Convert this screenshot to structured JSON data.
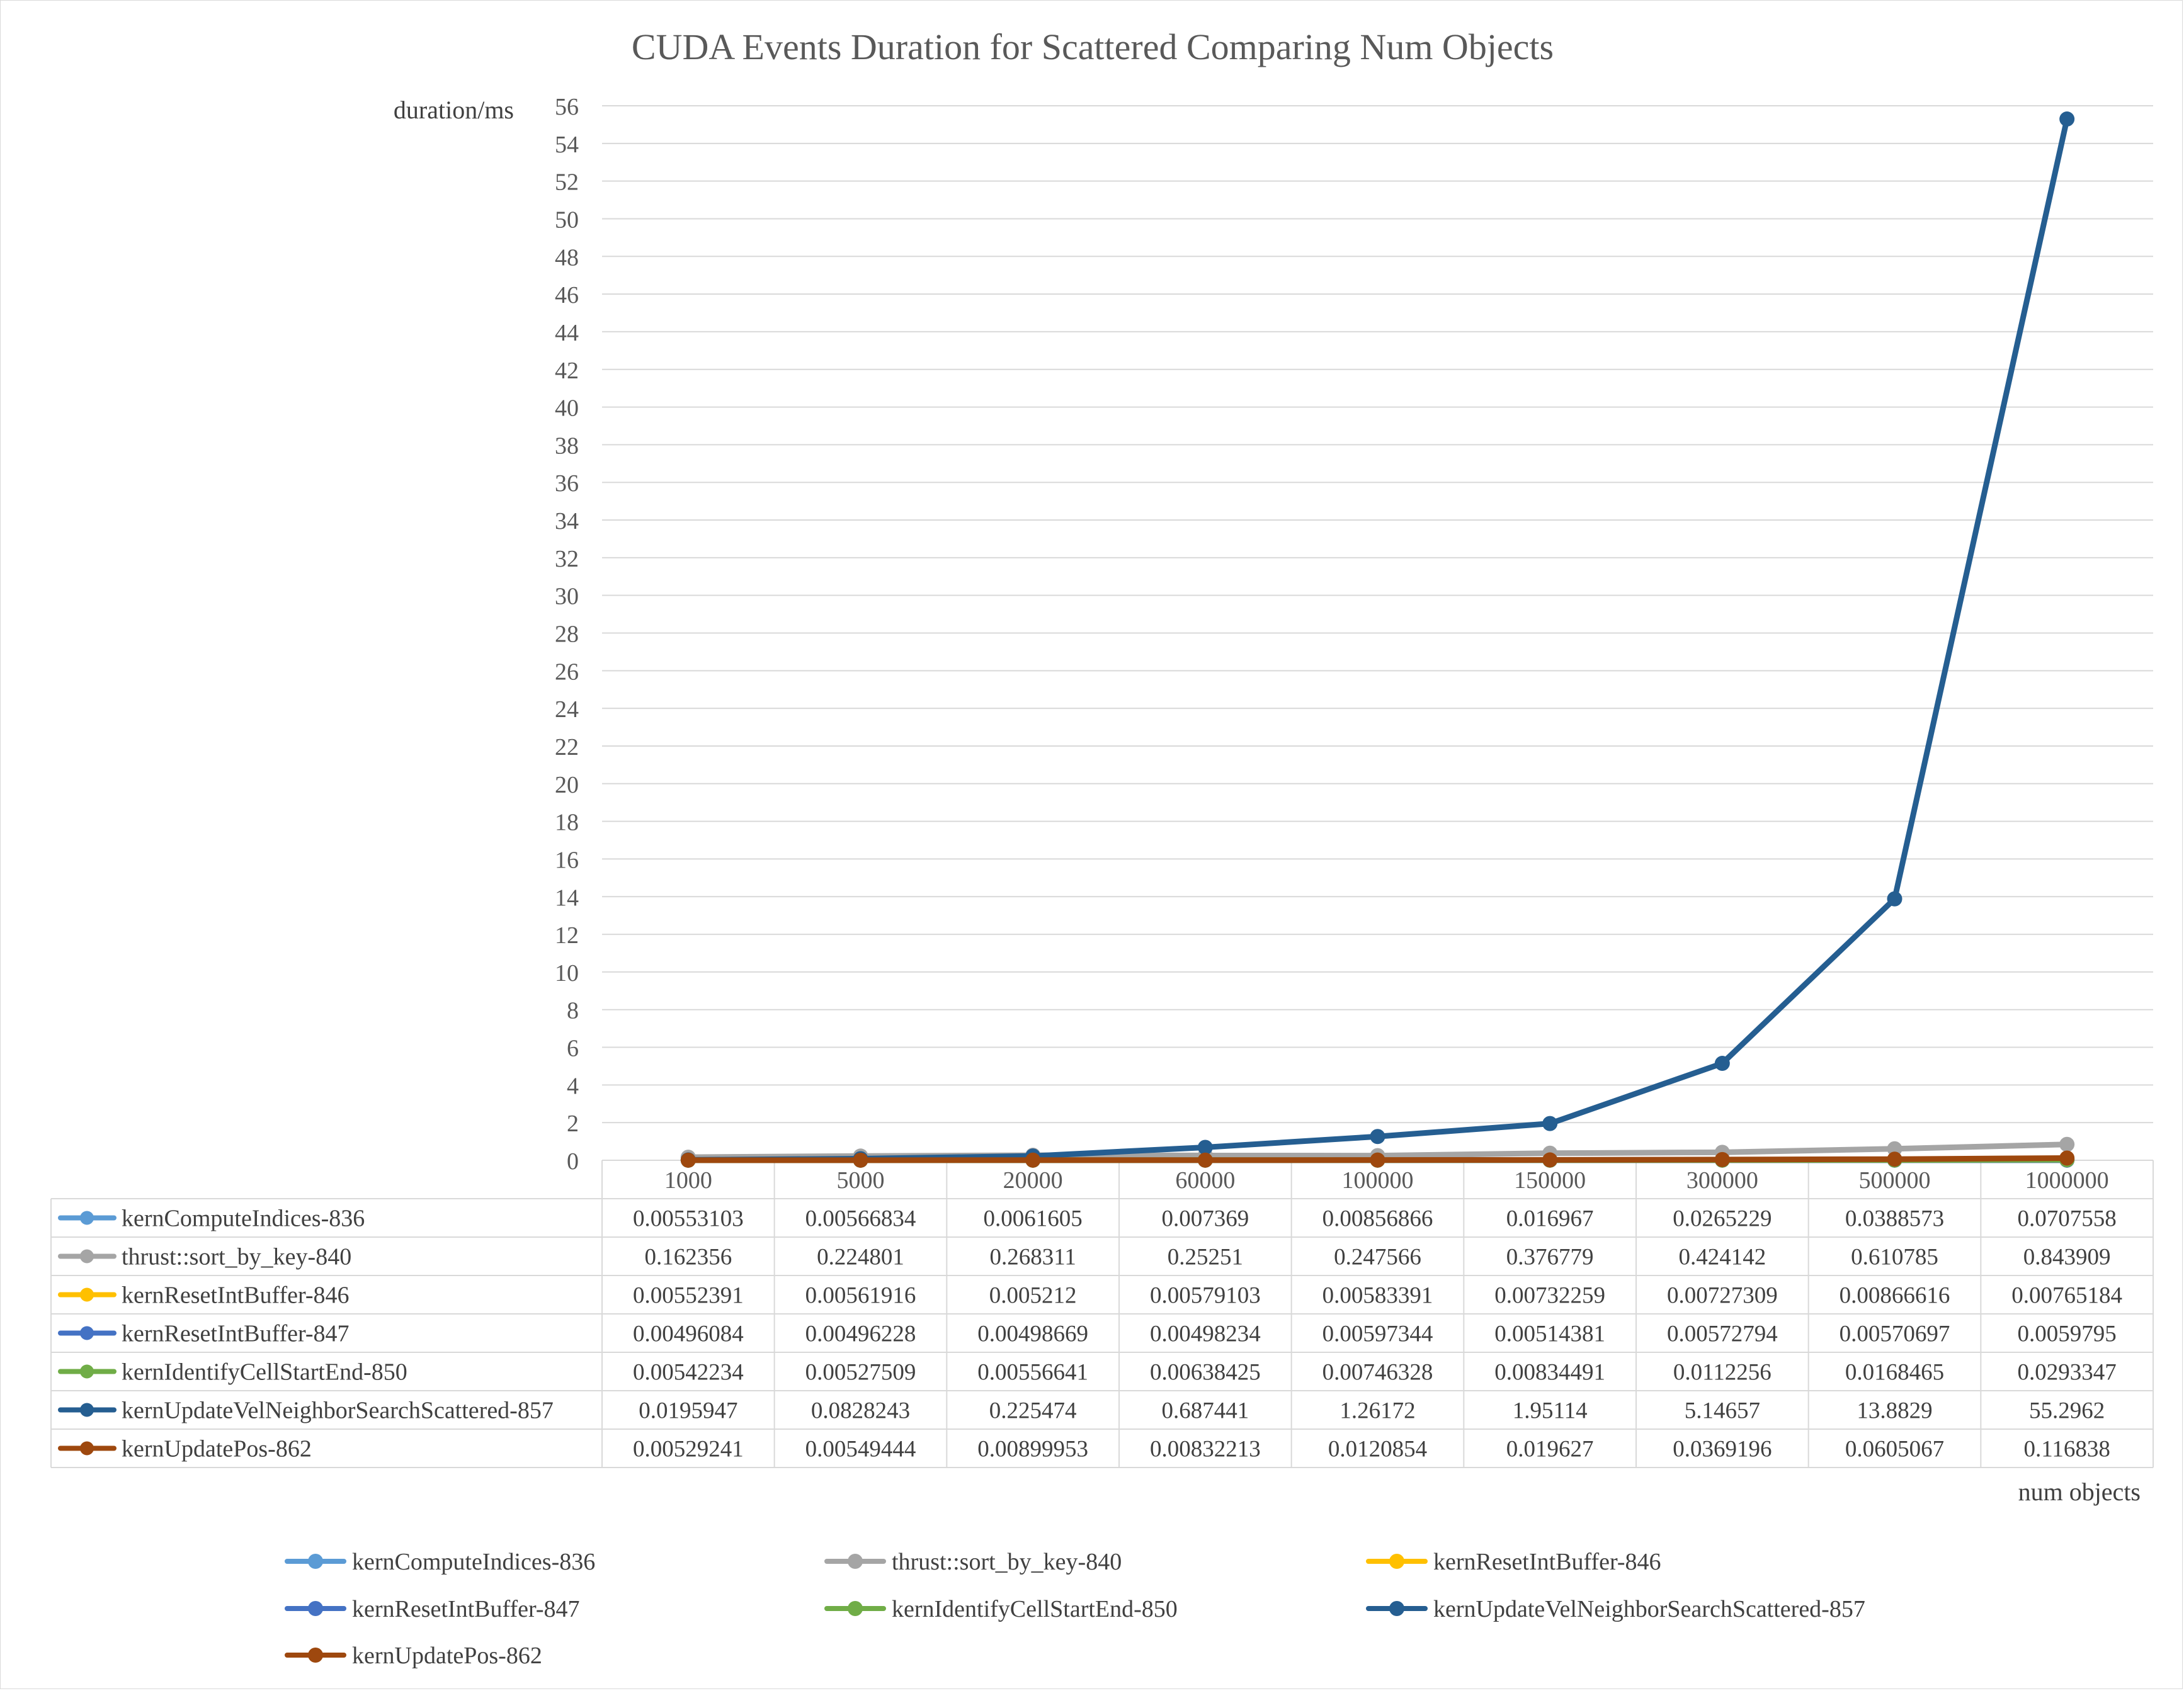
{
  "chart_data": {
    "type": "line",
    "title": "CUDA Events Duration for Scattered Comparing Num Objects",
    "ylabel": "duration/ms",
    "xlabel": "num objects",
    "ylim": [
      0,
      56
    ],
    "y_ticks": [
      "0",
      "2",
      "4",
      "6",
      "8",
      "10",
      "12",
      "14",
      "16",
      "18",
      "20",
      "22",
      "24",
      "26",
      "28",
      "30",
      "32",
      "34",
      "36",
      "38",
      "40",
      "42",
      "44",
      "46",
      "48",
      "50",
      "52",
      "54",
      "56"
    ],
    "categories": [
      "1000",
      "5000",
      "20000",
      "60000",
      "100000",
      "150000",
      "300000",
      "500000",
      "1000000"
    ],
    "grid": true,
    "legend_position": "bottom",
    "data_table": true,
    "series": [
      {
        "name": "kernComputeIndices-836",
        "color": "#5B9BD5",
        "values": [
          0.00553103,
          0.00566834,
          0.0061605,
          0.007369,
          0.00856866,
          0.016967,
          0.0265229,
          0.0388573,
          0.0707558
        ],
        "labels": [
          "0.00553103",
          "0.00566834",
          "0.0061605",
          "0.007369",
          "0.00856866",
          "0.016967",
          "0.0265229",
          "0.0388573",
          "0.0707558"
        ]
      },
      {
        "name": "thrust::sort_by_key-840",
        "color": "#A5A5A5",
        "values": [
          0.162356,
          0.224801,
          0.268311,
          0.25251,
          0.247566,
          0.376779,
          0.424142,
          0.610785,
          0.843909
        ],
        "labels": [
          "0.162356",
          "0.224801",
          "0.268311",
          "0.25251",
          "0.247566",
          "0.376779",
          "0.424142",
          "0.610785",
          "0.843909"
        ]
      },
      {
        "name": "kernResetIntBuffer-846",
        "color": "#FFC000",
        "values": [
          0.00552391,
          0.00561916,
          0.005212,
          0.00579103,
          0.00583391,
          0.00732259,
          0.00727309,
          0.00866616,
          0.00765184
        ],
        "labels": [
          "0.00552391",
          "0.00561916",
          "0.005212",
          "0.00579103",
          "0.00583391",
          "0.00732259",
          "0.00727309",
          "0.00866616",
          "0.00765184"
        ]
      },
      {
        "name": "kernResetIntBuffer-847",
        "color": "#4472C4",
        "values": [
          0.00496084,
          0.00496228,
          0.00498669,
          0.00498234,
          0.00597344,
          0.00514381,
          0.00572794,
          0.00570697,
          0.0059795
        ],
        "labels": [
          "0.00496084",
          "0.00496228",
          "0.00498669",
          "0.00498234",
          "0.00597344",
          "0.00514381",
          "0.00572794",
          "0.00570697",
          "0.0059795"
        ]
      },
      {
        "name": "kernIdentifyCellStartEnd-850",
        "color": "#70AD47",
        "values": [
          0.00542234,
          0.00527509,
          0.00556641,
          0.00638425,
          0.00746328,
          0.00834491,
          0.0112256,
          0.0168465,
          0.0293347
        ],
        "labels": [
          "0.00542234",
          "0.00527509",
          "0.00556641",
          "0.00638425",
          "0.00746328",
          "0.00834491",
          "0.0112256",
          "0.0168465",
          "0.0293347"
        ]
      },
      {
        "name": "kernUpdateVelNeighborSearchScattered-857",
        "color": "#255E91",
        "values": [
          0.0195947,
          0.0828243,
          0.225474,
          0.687441,
          1.26172,
          1.95114,
          5.14657,
          13.8829,
          55.2962
        ],
        "labels": [
          "0.0195947",
          "0.0828243",
          "0.225474",
          "0.687441",
          "1.26172",
          "1.95114",
          "5.14657",
          "13.8829",
          "55.2962"
        ]
      },
      {
        "name": "kernUpdatePos-862",
        "color": "#9E480E",
        "values": [
          0.00529241,
          0.00549444,
          0.00899953,
          0.00832213,
          0.0120854,
          0.019627,
          0.0369196,
          0.0605067,
          0.116838
        ],
        "labels": [
          "0.00529241",
          "0.00549444",
          "0.00899953",
          "0.00832213",
          "0.0120854",
          "0.019627",
          "0.0369196",
          "0.0605067",
          "0.116838"
        ]
      }
    ]
  }
}
